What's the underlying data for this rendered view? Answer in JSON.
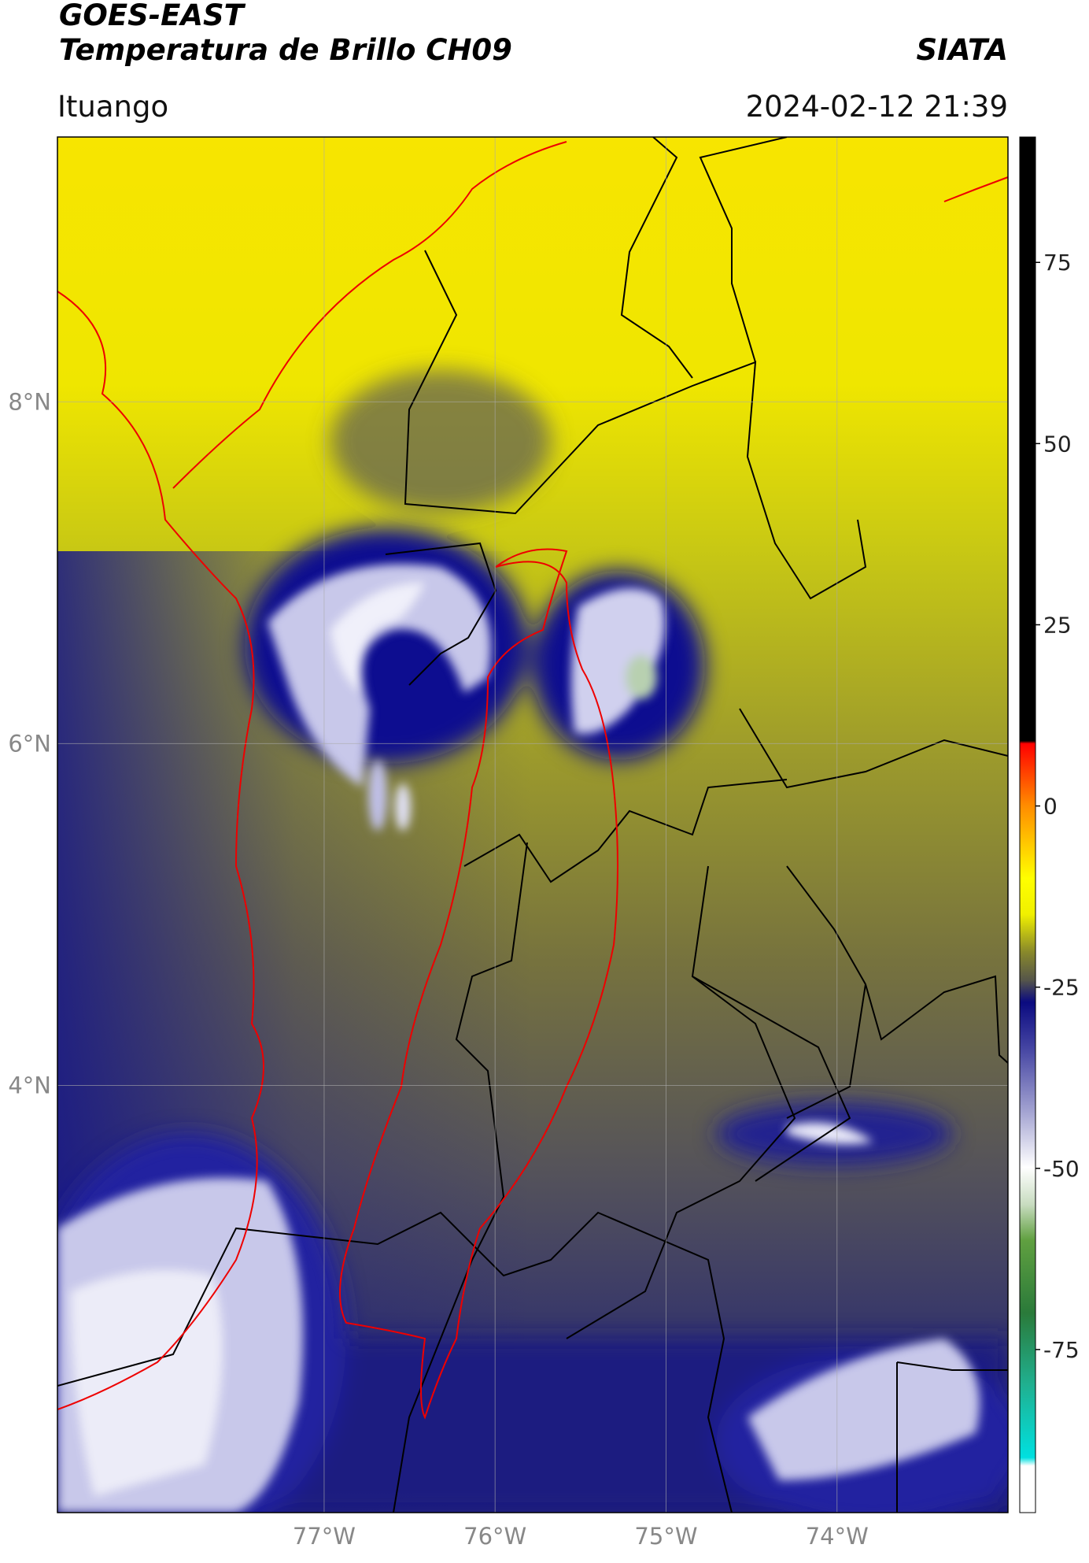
{
  "header": {
    "title": "GOES-EAST",
    "subtitle": "Temperatura de Brillo CH09",
    "source": "SIATA",
    "location": "Ituango",
    "datetime": "2024-02-12 21:39"
  },
  "map": {
    "xlim": [
      -78.56,
      -73.0
    ],
    "ylim": [
      1.5,
      9.55
    ],
    "xticks": [
      {
        "value": -77,
        "label": "77°W"
      },
      {
        "value": -76,
        "label": "76°W"
      },
      {
        "value": -75,
        "label": "75°W"
      },
      {
        "value": -74,
        "label": "74°W"
      }
    ],
    "yticks": [
      {
        "value": 4,
        "label": "4°N"
      },
      {
        "value": 6,
        "label": "6°N"
      },
      {
        "value": 8,
        "label": "8°N"
      }
    ],
    "grid": true
  },
  "colorbar": {
    "lim": [
      -97.5,
      92.3
    ],
    "ticks": [
      -75,
      -50,
      -25,
      0,
      25,
      50,
      75
    ]
  }
}
